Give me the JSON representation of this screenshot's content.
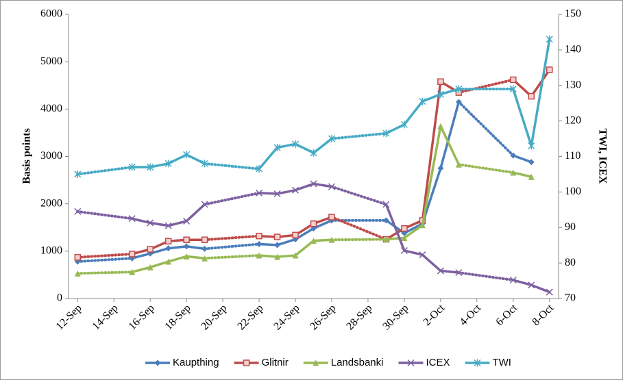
{
  "chart_data": {
    "type": "line",
    "ylabel": "Basis points",
    "y2label": "TWI, ICEX",
    "categories": [
      "12-Sep",
      null,
      "14-Sep",
      null,
      "16-Sep",
      null,
      "18-Sep",
      null,
      "20-Sep",
      null,
      "22-Sep",
      null,
      "24-Sep",
      null,
      "26-Sep",
      null,
      "28-Sep",
      null,
      "30-Sep",
      null,
      "2-Oct",
      null,
      "4-Oct",
      null,
      "6-Oct",
      null,
      "8-Oct"
    ],
    "series": [
      {
        "name": "Kaupthing",
        "color": "#4a7ebb",
        "marker": "diamond",
        "values": [
          780,
          null,
          null,
          850,
          950,
          1060,
          1100,
          1050,
          null,
          null,
          1150,
          1130,
          1250,
          1480,
          1650,
          null,
          null,
          1650,
          1380,
          1580,
          2750,
          4150,
          null,
          null,
          3020,
          2880,
          null
        ]
      },
      {
        "name": "Glitnir",
        "color": "#be4b48",
        "marker": "square",
        "values": [
          870,
          null,
          null,
          940,
          1040,
          1210,
          1240,
          1240,
          null,
          null,
          1320,
          1300,
          1340,
          1580,
          1720,
          null,
          null,
          1250,
          1480,
          1650,
          4580,
          4350,
          null,
          null,
          4620,
          4270,
          4830
        ]
      },
      {
        "name": "Landsbanki",
        "color": "#98b954",
        "marker": "triangle",
        "values": [
          530,
          null,
          null,
          560,
          660,
          780,
          890,
          850,
          null,
          null,
          910,
          880,
          910,
          1220,
          1240,
          null,
          null,
          1250,
          1280,
          1550,
          3640,
          2830,
          null,
          null,
          2660,
          2570,
          null
        ]
      },
      {
        "name": "ICEX",
        "color": "#7d60a0",
        "marker": "x",
        "axis": "y2",
        "values": [
          94.5,
          null,
          null,
          92.5,
          91.3,
          90.5,
          91.8,
          96.5,
          null,
          null,
          99.7,
          99.5,
          100.5,
          102.3,
          101.5,
          null,
          null,
          96.5,
          83.5,
          82.3,
          77.8,
          77.3,
          null,
          null,
          75.2,
          73.8,
          71.8
        ]
      },
      {
        "name": "TWI",
        "color": "#46aac5",
        "marker": "star",
        "axis": "y2",
        "values": [
          105,
          null,
          null,
          107,
          107,
          108,
          110.5,
          108,
          null,
          null,
          106.5,
          112.5,
          113.5,
          111,
          115,
          null,
          null,
          116.5,
          119,
          125.5,
          127.5,
          129,
          null,
          null,
          129,
          113,
          143
        ]
      }
    ],
    "ylim": [
      0,
      6000
    ],
    "yticks": [
      0,
      1000,
      2000,
      3000,
      4000,
      5000,
      6000
    ],
    "y2lim": [
      70,
      150
    ],
    "y2ticks": [
      70,
      80,
      90,
      100,
      110,
      120,
      130,
      140,
      150
    ],
    "legend": "bottom"
  }
}
